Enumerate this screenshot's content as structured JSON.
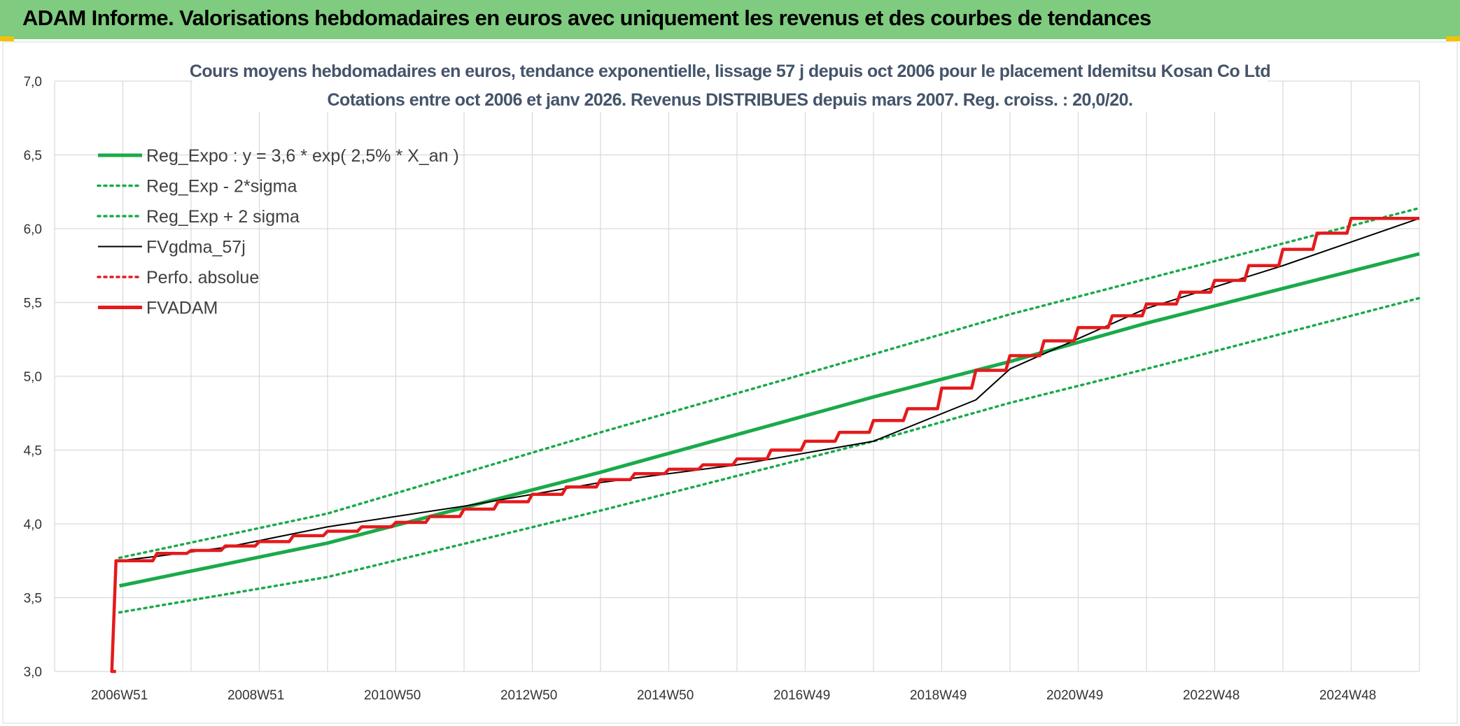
{
  "banner": {
    "title": "ADAM Informe. Valorisations hebdomadaires en euros avec uniquement les revenus et des courbes de tendances"
  },
  "chart_data": {
    "type": "line",
    "title_line1": "Cours moyens hebdomadaires en euros, tendance exponentielle, lissage 57 j depuis oct 2006 pour le placement Idemitsu Kosan Co Ltd",
    "title_line2": "Cotations entre oct 2006 et janv 2026. Revenus DISTRIBUES depuis mars 2007. Reg. croiss. : 20,0/20.",
    "ylim": [
      3.0,
      7.0
    ],
    "y_ticks": [
      "3,0",
      "3,5",
      "4,0",
      "4,5",
      "5,0",
      "5,5",
      "6,0",
      "6,5",
      "7,0"
    ],
    "x_ticks": [
      "2006W51",
      "2008W51",
      "2010W50",
      "2012W50",
      "2014W50",
      "2016W49",
      "2018W49",
      "2020W49",
      "2022W48",
      "2024W48"
    ],
    "x_range_years": [
      2006.0,
      2026.0
    ],
    "grid": true,
    "legend_position": "top-left",
    "series": [
      {
        "name": "Reg_Expo : y = 3,6 * exp( 2,5% *  X_an )",
        "color": "#1aaa4a",
        "style": "solid-thick",
        "x": [
          2006.95,
          2010.0,
          2014.0,
          2018.0,
          2020.0,
          2022.0,
          2026.0
        ],
        "values": [
          3.58,
          3.87,
          4.35,
          4.86,
          5.1,
          5.36,
          5.83
        ]
      },
      {
        "name": "Reg_Exp - 2*sigma",
        "color": "#1aaa4a",
        "style": "dotted",
        "x": [
          2006.95,
          2010.0,
          2014.0,
          2018.0,
          2020.0,
          2022.0,
          2026.0
        ],
        "values": [
          3.4,
          3.64,
          4.09,
          4.56,
          4.82,
          5.05,
          5.53
        ]
      },
      {
        "name": "Reg_Exp + 2 sigma",
        "color": "#1aaa4a",
        "style": "dotted",
        "x": [
          2006.95,
          2010.0,
          2014.0,
          2018.0,
          2020.0,
          2022.0,
          2026.0
        ],
        "values": [
          3.77,
          4.07,
          4.62,
          5.15,
          5.42,
          5.66,
          6.14
        ]
      },
      {
        "name": "FVgdma_57j",
        "color": "#000000",
        "style": "solid",
        "x": [
          2006.95,
          2007.5,
          2008.5,
          2010.0,
          2012.0,
          2014.0,
          2016.0,
          2018.0,
          2019.5,
          2020.0,
          2022.0,
          2024.0,
          2026.0
        ],
        "values": [
          3.75,
          3.78,
          3.84,
          3.98,
          4.12,
          4.28,
          4.4,
          4.56,
          4.84,
          5.05,
          5.46,
          5.75,
          6.07
        ]
      },
      {
        "name": "Perfo. absolue",
        "color": "#e41a1c",
        "style": "dotted",
        "x": [
          2006.95,
          2026.0
        ],
        "values": [
          3.0,
          3.0
        ]
      },
      {
        "name": "FVADAM",
        "color": "#e41a1c",
        "style": "step-thick",
        "x": [
          2006.9,
          2006.9,
          2007.5,
          2008.0,
          2008.5,
          2009.0,
          2009.5,
          2010.0,
          2010.5,
          2011.0,
          2011.5,
          2012.0,
          2012.5,
          2013.0,
          2013.5,
          2014.0,
          2014.5,
          2015.0,
          2015.5,
          2016.0,
          2016.5,
          2017.0,
          2017.5,
          2018.0,
          2018.5,
          2019.0,
          2019.5,
          2020.0,
          2020.5,
          2021.0,
          2021.5,
          2022.0,
          2022.5,
          2023.0,
          2023.5,
          2024.0,
          2024.5,
          2025.0,
          2025.5,
          2026.0
        ],
        "values": [
          3.0,
          3.75,
          3.8,
          3.82,
          3.85,
          3.88,
          3.92,
          3.95,
          3.98,
          4.01,
          4.05,
          4.1,
          4.15,
          4.2,
          4.25,
          4.3,
          4.34,
          4.37,
          4.4,
          4.44,
          4.5,
          4.56,
          4.62,
          4.7,
          4.78,
          4.92,
          5.04,
          5.14,
          5.24,
          5.33,
          5.41,
          5.49,
          5.57,
          5.65,
          5.75,
          5.86,
          5.97,
          6.07,
          6.07,
          6.07
        ]
      }
    ]
  }
}
